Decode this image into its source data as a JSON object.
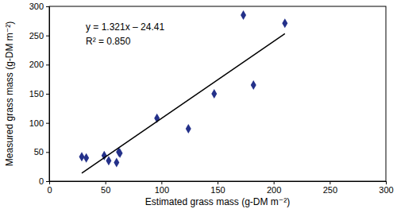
{
  "chart_data": {
    "type": "scatter",
    "x_label": "Estimated grass mass (g-DM m⁻²)",
    "y_label": "Measured grass mass (g-DM m⁻²)",
    "annotations": [
      "y = 1.321x – 24.41",
      "R² = 0.850"
    ],
    "series": [
      {
        "type": "scatter",
        "marker": "diamond",
        "color": "#24318a",
        "x": [
          29,
          33,
          49,
          53,
          60,
          62,
          63,
          96,
          124,
          147,
          173,
          182,
          210
        ],
        "values": [
          42,
          40,
          44,
          35,
          32,
          50,
          48,
          108,
          90,
          150,
          285,
          165,
          271
        ]
      },
      {
        "type": "line",
        "line_style": "solid",
        "color": "#000000",
        "x": [
          29,
          210
        ],
        "values": [
          13.9,
          253.0
        ]
      }
    ],
    "xlim": [
      0,
      300
    ],
    "xticks": [
      0,
      50,
      100,
      150,
      200,
      250,
      300
    ],
    "ylim": [
      0,
      300
    ],
    "yticks": [
      0,
      50,
      100,
      150,
      200,
      250,
      300
    ],
    "grid": false
  }
}
